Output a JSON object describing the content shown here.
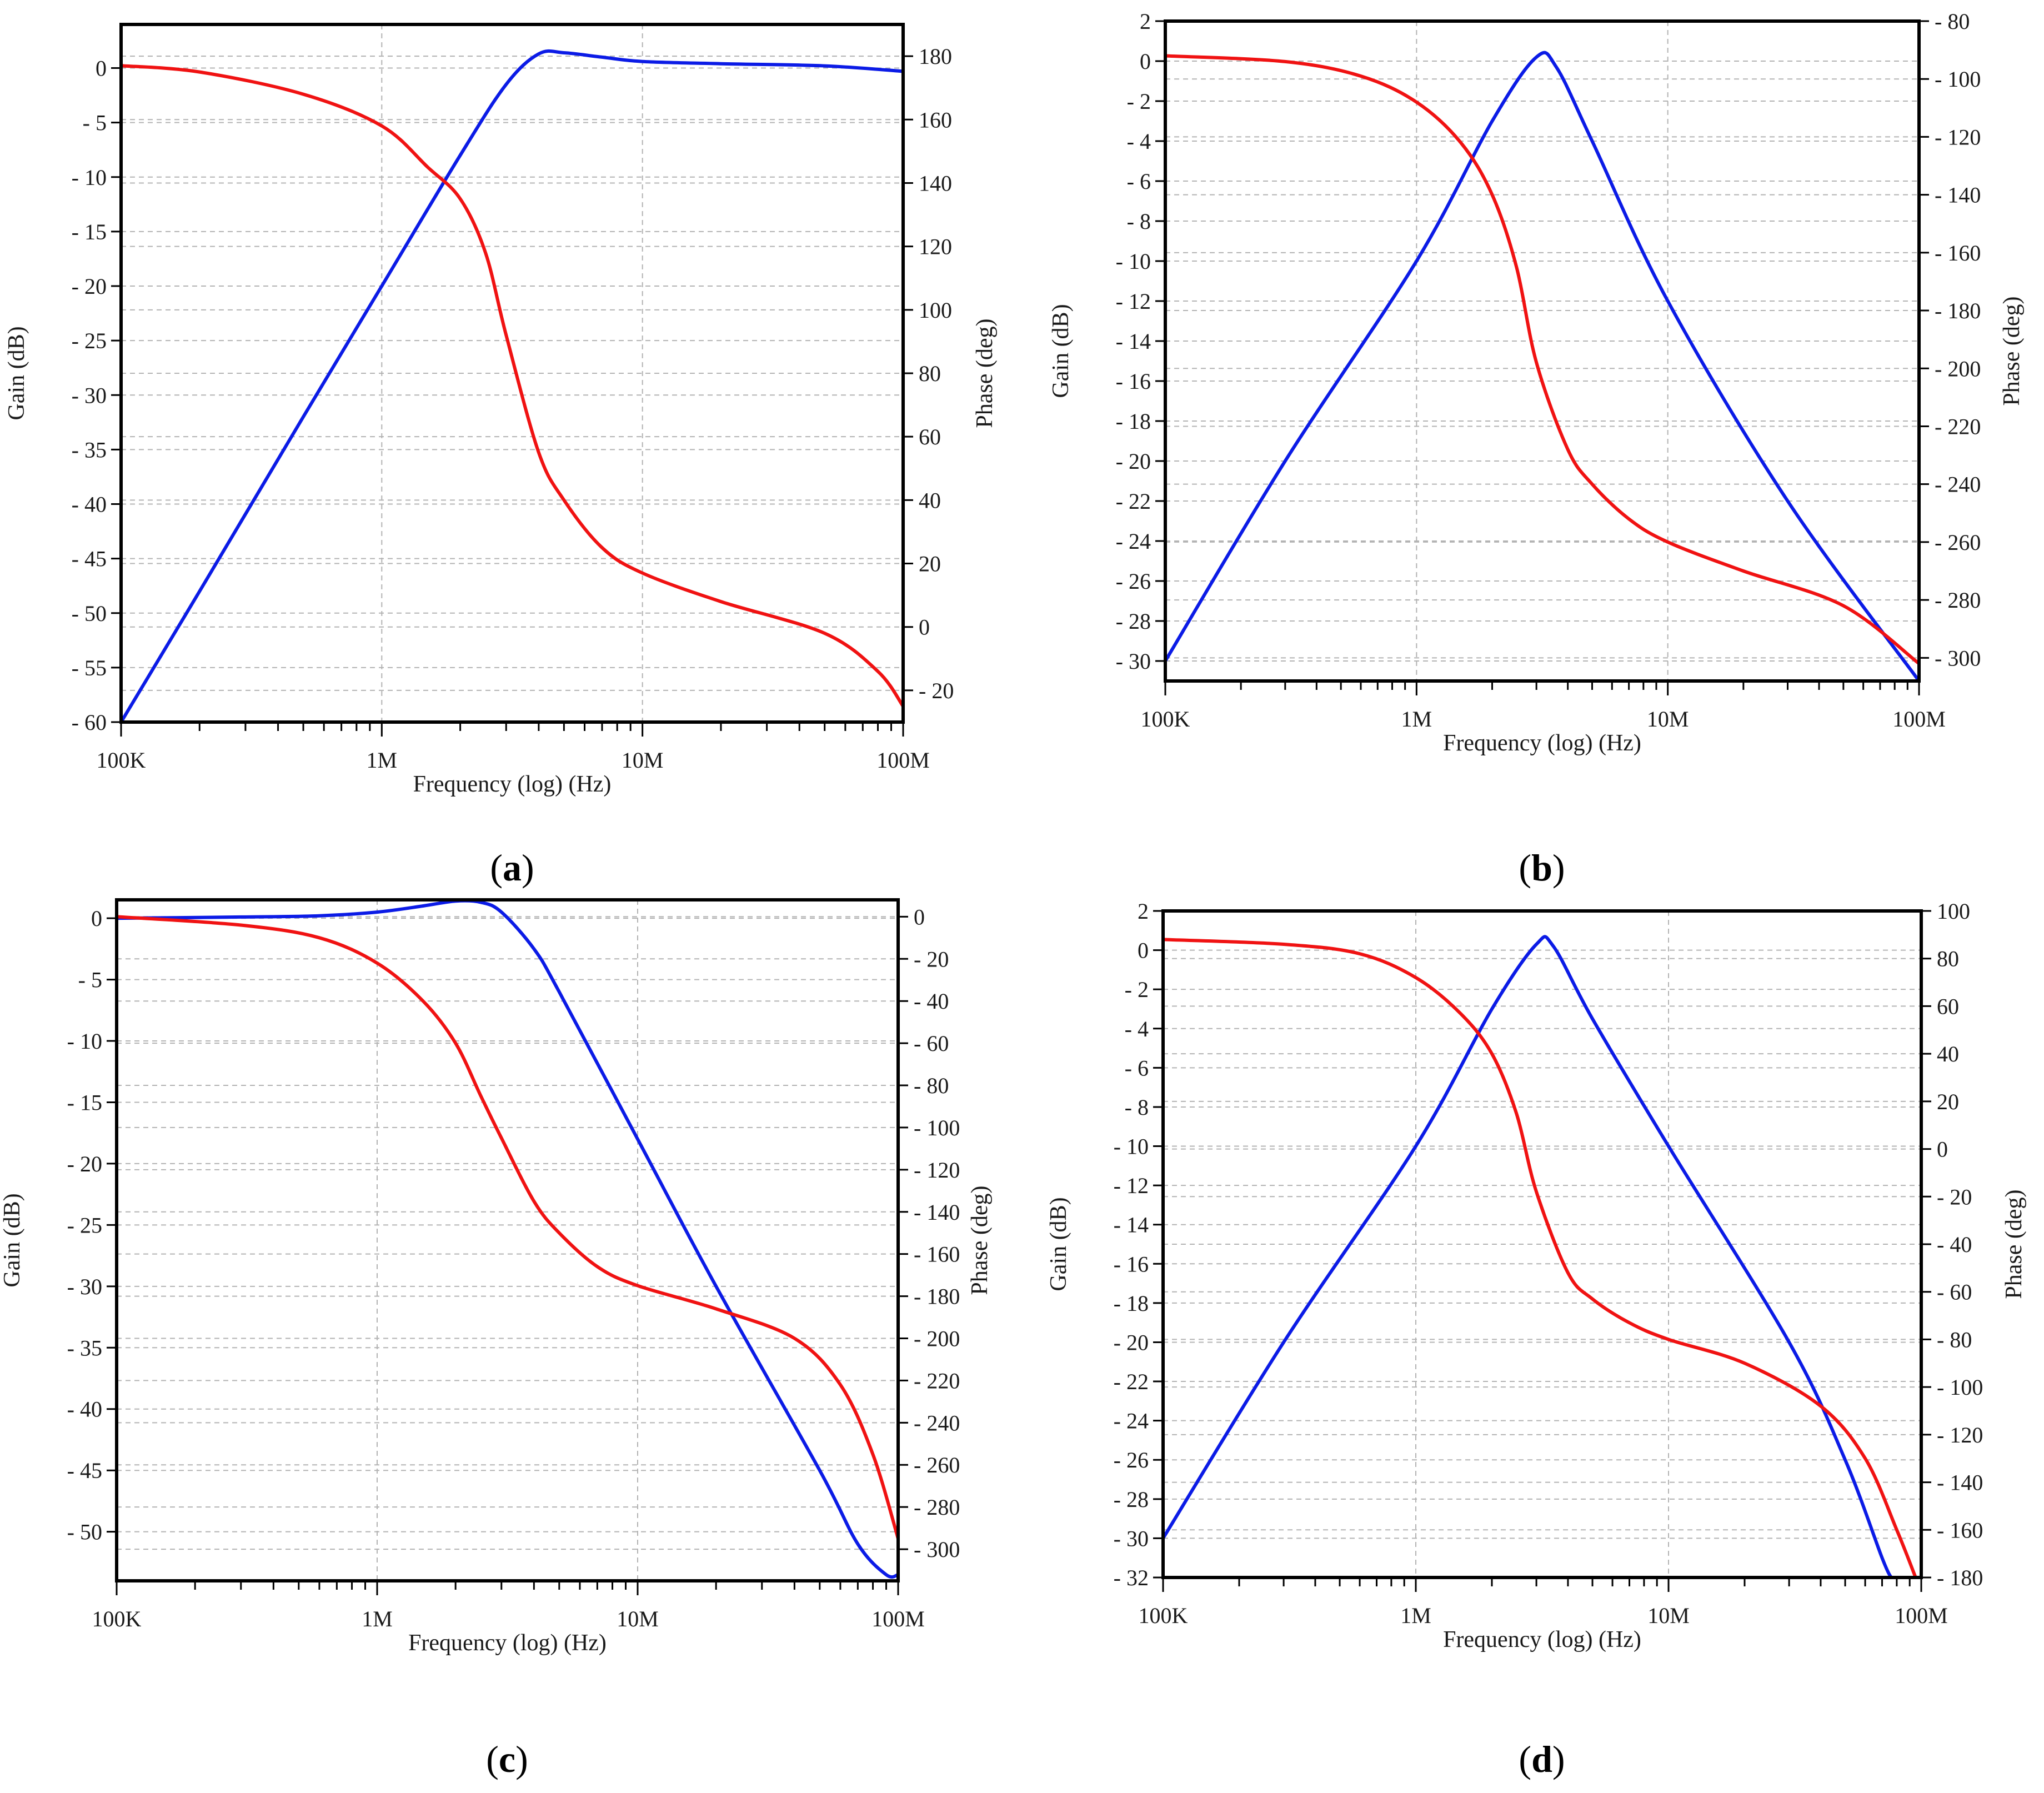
{
  "colors": {
    "gain_series": "#0b1be6",
    "phase_series": "#f01212"
  },
  "chart_data": [
    {
      "type": "line",
      "panel_label": "a",
      "xlabel": "Frequency (log) (Hz)",
      "ylabel": "Gain (dB)",
      "y2label": "Phase (deg)",
      "xscale": "log",
      "xlim": [
        100000,
        100000000
      ],
      "x_ticks": [
        100000,
        1000000,
        10000000,
        100000000
      ],
      "x_tick_labels": [
        "100K",
        "1M",
        "10M",
        "100M"
      ],
      "ylim": [
        -60,
        4
      ],
      "y_ticks": [
        0,
        -5,
        -10,
        -15,
        -20,
        -25,
        -30,
        -35,
        -40,
        -45,
        -50,
        -55,
        -60
      ],
      "y2lim": [
        -30,
        190
      ],
      "y2_ticks": [
        180,
        160,
        140,
        120,
        100,
        80,
        60,
        40,
        20,
        0,
        -20
      ],
      "grid": true,
      "series": [
        {
          "name": "Gain",
          "axis": "left",
          "color": "blue",
          "x": [
            100000,
            200000,
            500000,
            1000000,
            2000000,
            3000000,
            4000000,
            5000000,
            7000000,
            10000000,
            20000000,
            50000000,
            100000000
          ],
          "values": [
            -60,
            -48,
            -32,
            -20,
            -8,
            -1.5,
            1.3,
            1.4,
            1,
            0.6,
            0.4,
            0.2,
            -0.3
          ]
        },
        {
          "name": "Phase",
          "axis": "right",
          "color": "red",
          "x": [
            100000,
            200000,
            500000,
            1000000,
            1500000,
            2000000,
            2500000,
            3000000,
            4000000,
            5000000,
            7000000,
            10000000,
            20000000,
            50000000,
            80000000,
            100000000
          ],
          "values": [
            177,
            175,
            168,
            158,
            145,
            135,
            118,
            92,
            55,
            40,
            25,
            17,
            8,
            -2,
            -14,
            -25
          ]
        }
      ]
    },
    {
      "type": "line",
      "panel_label": "b",
      "xlabel": "Frequency (log) (Hz)",
      "ylabel": "Gain (dB)",
      "y2label": "Phase (deg)",
      "xscale": "log",
      "xlim": [
        100000,
        100000000
      ],
      "x_ticks": [
        100000,
        1000000,
        10000000,
        100000000
      ],
      "x_tick_labels": [
        "100K",
        "1M",
        "10M",
        "100M"
      ],
      "ylim": [
        -31,
        2
      ],
      "y_ticks": [
        2,
        0,
        -2,
        -4,
        -6,
        -8,
        -10,
        -12,
        -14,
        -16,
        -18,
        -20,
        -22,
        -24,
        -26,
        -28,
        -30
      ],
      "y2lim": [
        -308,
        -80
      ],
      "y2_ticks": [
        -80,
        -100,
        -120,
        -140,
        -160,
        -180,
        -200,
        -220,
        -240,
        -260,
        -280,
        -300
      ],
      "grid": true,
      "series": [
        {
          "name": "Gain",
          "axis": "left",
          "color": "blue",
          "x": [
            100000,
            300000,
            1000000,
            2000000,
            3000000,
            3600000,
            5000000,
            10000000,
            30000000,
            100000000
          ],
          "values": [
            -30,
            -20,
            -10,
            -3,
            0.2,
            -0.3,
            -4,
            -12,
            -22,
            -31
          ]
        },
        {
          "name": "Phase",
          "axis": "right",
          "color": "red",
          "x": [
            100000,
            300000,
            600000,
            1000000,
            1500000,
            2000000,
            2500000,
            3000000,
            4000000,
            5000000,
            7000000,
            10000000,
            20000000,
            50000000,
            100000000
          ],
          "values": [
            -92,
            -94,
            -99,
            -108,
            -122,
            -140,
            -165,
            -198,
            -228,
            -240,
            -252,
            -260,
            -270,
            -282,
            -302
          ]
        }
      ]
    },
    {
      "type": "line",
      "panel_label": "c",
      "xlabel": "Frequency (log) (Hz)",
      "ylabel": "Gain (dB)",
      "y2label": "Phase (deg)",
      "xscale": "log",
      "xlim": [
        100000,
        100000000
      ],
      "x_ticks": [
        100000,
        1000000,
        10000000,
        100000000
      ],
      "x_tick_labels": [
        "100K",
        "1M",
        "10M",
        "100M"
      ],
      "ylim": [
        -54,
        1.5
      ],
      "y_ticks": [
        0,
        -5,
        -10,
        -15,
        -20,
        -25,
        -30,
        -35,
        -40,
        -45,
        -50
      ],
      "y2lim": [
        -315,
        8
      ],
      "y2_ticks": [
        0,
        -20,
        -40,
        -60,
        -80,
        -100,
        -120,
        -140,
        -160,
        -180,
        -200,
        -220,
        -240,
        -260,
        -280,
        -300
      ],
      "grid": true,
      "series": [
        {
          "name": "Gain",
          "axis": "left",
          "color": "blue",
          "x": [
            100000,
            300000,
            600000,
            1000000,
            1500000,
            2000000,
            2500000,
            3000000,
            4000000,
            5000000,
            10000000,
            20000000,
            50000000,
            70000000,
            90000000,
            100000000
          ],
          "values": [
            0,
            0.1,
            0.2,
            0.5,
            1,
            1.4,
            1.3,
            0.5,
            -2.5,
            -6,
            -18,
            -30,
            -45,
            -51,
            -53.5,
            -53.5
          ]
        },
        {
          "name": "Phase",
          "axis": "right",
          "color": "red",
          "x": [
            100000,
            300000,
            600000,
            1000000,
            1500000,
            2000000,
            2500000,
            3000000,
            4000000,
            5000000,
            7000000,
            10000000,
            20000000,
            40000000,
            60000000,
            80000000,
            100000000
          ],
          "values": [
            0,
            -4,
            -10,
            -22,
            -40,
            -60,
            -85,
            -105,
            -135,
            -150,
            -166,
            -175,
            -186,
            -200,
            -222,
            -255,
            -295
          ]
        }
      ]
    },
    {
      "type": "line",
      "panel_label": "d",
      "xlabel": "Frequency (log) (Hz)",
      "ylabel": "Gain (dB)",
      "y2label": "Phase (deg)",
      "xscale": "log",
      "xlim": [
        100000,
        100000000
      ],
      "x_ticks": [
        100000,
        1000000,
        10000000,
        100000000
      ],
      "x_tick_labels": [
        "100K",
        "1M",
        "10M",
        "100M"
      ],
      "ylim": [
        -32,
        2
      ],
      "y_ticks": [
        2,
        0,
        -2,
        -4,
        -6,
        -8,
        -10,
        -12,
        -14,
        -16,
        -18,
        -20,
        -22,
        -24,
        -26,
        -28,
        -30,
        -32
      ],
      "y2lim": [
        -180,
        100
      ],
      "y2_ticks": [
        100,
        80,
        60,
        40,
        20,
        0,
        -20,
        -40,
        -60,
        -80,
        -100,
        -120,
        -140,
        -160,
        -180
      ],
      "grid": true,
      "series": [
        {
          "name": "Gain",
          "axis": "left",
          "color": "blue",
          "x": [
            100000,
            300000,
            1000000,
            2000000,
            3000000,
            3500000,
            5000000,
            10000000,
            30000000,
            50000000,
            70000000,
            76000000
          ],
          "values": [
            -30,
            -20,
            -10,
            -3,
            0.3,
            0.2,
            -3.5,
            -10,
            -20,
            -26,
            -31,
            -32
          ]
        },
        {
          "name": "Phase",
          "axis": "right",
          "color": "red",
          "x": [
            100000,
            300000,
            600000,
            1000000,
            1500000,
            2000000,
            2500000,
            3000000,
            4000000,
            5000000,
            7000000,
            10000000,
            20000000,
            40000000,
            60000000,
            80000000,
            95000000
          ],
          "values": [
            88,
            86,
            82,
            72,
            57,
            40,
            15,
            -18,
            -52,
            -63,
            -73,
            -80,
            -90,
            -108,
            -130,
            -160,
            -180
          ]
        }
      ]
    }
  ]
}
